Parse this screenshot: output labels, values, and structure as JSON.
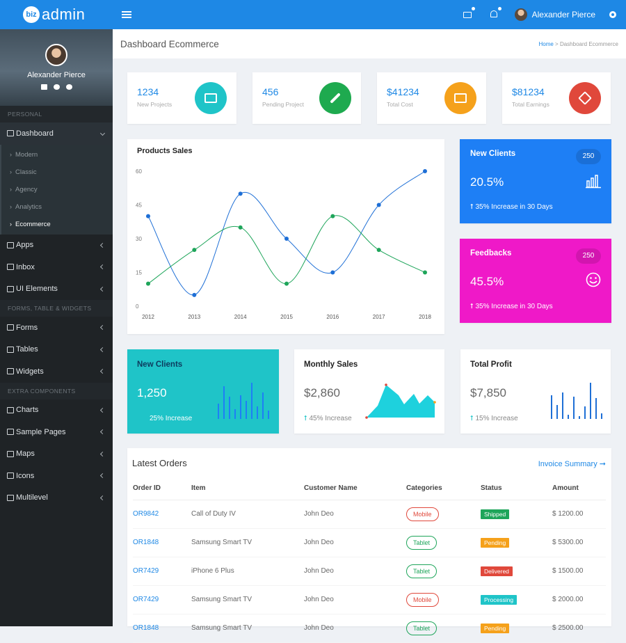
{
  "topbar": {
    "logo_badge": "biz",
    "logo_text": "admin",
    "user_name": "Alexander Pierce"
  },
  "sidebar": {
    "profile_name": "Alexander Pierce",
    "section_personal": "PERSONAL",
    "section_forms": "FORMS, TABLE & WIDGETS",
    "section_extra": "EXTRA COMPONENTS",
    "dashboard": "Dashboard",
    "submenu": [
      "Modern",
      "Classic",
      "Agency",
      "Analytics",
      "Ecommerce"
    ],
    "items_personal": [
      "Apps",
      "Inbox",
      "UI Elements"
    ],
    "items_forms": [
      "Forms",
      "Tables",
      "Widgets"
    ],
    "items_extra": [
      "Charts",
      "Sample Pages",
      "Maps",
      "Icons",
      "Multilevel"
    ]
  },
  "header": {
    "title": "Dashboard Ecommerce",
    "crumb_home": "Home",
    "crumb_sep": " > ",
    "crumb_current": "Dashboard Ecommerce"
  },
  "stats": [
    {
      "value": "1234",
      "label": "New Projects",
      "color": "#1fc4c8",
      "icon": "briefcase-icon"
    },
    {
      "value": "456",
      "label": "Pending Project",
      "color": "#1eaa4f",
      "icon": "pencil-icon"
    },
    {
      "value": "$41234",
      "label": "Total Cost",
      "color": "#f5a11b",
      "icon": "wallet-icon"
    },
    {
      "value": "$81234",
      "label": "Total Earnings",
      "color": "#e0483b",
      "icon": "layers-icon"
    }
  ],
  "products_sales": {
    "title": "Products Sales"
  },
  "chart_data": {
    "type": "line",
    "x": [
      "2012",
      "2013",
      "2014",
      "2015",
      "2016",
      "2017",
      "2018"
    ],
    "ylim": [
      0,
      60
    ],
    "yticks": [
      0,
      15,
      30,
      45,
      60
    ],
    "series": [
      {
        "color": "#1e6fd6",
        "values": [
          40,
          5,
          50,
          30,
          15,
          45,
          60
        ]
      },
      {
        "color": "#1ea55a",
        "values": [
          10,
          25,
          35,
          10,
          40,
          25,
          15
        ]
      }
    ]
  },
  "new_clients_card": {
    "title": "New Clients",
    "badge": "250",
    "percent": "20.5%",
    "sub": "35% Increase in 30 Days",
    "color": "#1e7ff5"
  },
  "feedbacks_card": {
    "title": "Feedbacks",
    "badge": "250",
    "percent": "45.5%",
    "sub": "35% Increase in 30 Days",
    "color": "#ef19c8"
  },
  "mini_cards": [
    {
      "title": "New Clients",
      "value": "1,250",
      "sub": "25% Increase"
    },
    {
      "title": "Monthly Sales",
      "value": "$2,860",
      "sub": "45% Increase"
    },
    {
      "title": "Total Profit",
      "value": "$7,850",
      "sub": "15% Increase"
    }
  ],
  "orders": {
    "title": "Latest Orders",
    "link": "Invoice Summary",
    "headers": [
      "Order ID",
      "Item",
      "Customer Name",
      "Categories",
      "Status",
      "Amount"
    ],
    "rows": [
      {
        "id": "OR9842",
        "item": "Call of Duty IV",
        "customer": "John Deo",
        "category": "Mobile",
        "status": "Shipped",
        "amount": "$ 1200.00"
      },
      {
        "id": "OR1848",
        "item": "Samsung Smart TV",
        "customer": "John Deo",
        "category": "Tablet",
        "status": "Pending",
        "amount": "$ 5300.00"
      },
      {
        "id": "OR7429",
        "item": "iPhone 6 Plus",
        "customer": "John Deo",
        "category": "Tablet",
        "status": "Delivered",
        "amount": "$ 1500.00"
      },
      {
        "id": "OR7429",
        "item": "Samsung Smart TV",
        "customer": "John Deo",
        "category": "Mobile",
        "status": "Processing",
        "amount": "$ 2000.00"
      },
      {
        "id": "OR1848",
        "item": "Samsung Smart TV",
        "customer": "John Deo",
        "category": "Tablet",
        "status": "Pending",
        "amount": "$ 2500.00"
      }
    ],
    "category_colors": {
      "Mobile": "#e0483b",
      "Tablet": "#1ea55a"
    },
    "status_colors": {
      "Shipped": "#1ea55a",
      "Pending": "#f5a11b",
      "Delivered": "#e0483b",
      "Processing": "#1fc4c8"
    }
  }
}
